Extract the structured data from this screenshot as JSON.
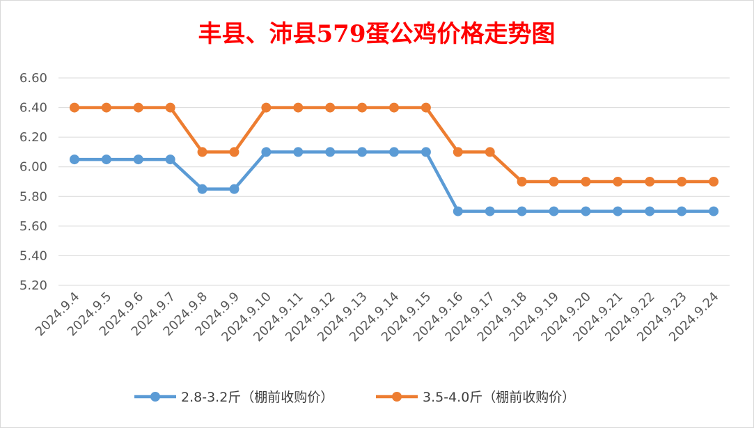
{
  "chart_data": {
    "type": "line",
    "title": "丰县、沛县579蛋公鸡价格走势图",
    "xlabel": "",
    "ylabel": "",
    "categories": [
      "2024.9.4",
      "2024.9.5",
      "2024.9.6",
      "2024.9.7",
      "2024.9.8",
      "2024.9.9",
      "2024.9.10",
      "2024.9.11",
      "2024.9.12",
      "2024.9.13",
      "2024.9.14",
      "2024.9.15",
      "2024.9.16",
      "2024.9.17",
      "2024.9.18",
      "2024.9.19",
      "2024.9.20",
      "2024.9.21",
      "2024.9.22",
      "2024.9.23",
      "2024.9.24"
    ],
    "yticks": [
      "6.60",
      "6.40",
      "6.20",
      "6.00",
      "5.80",
      "5.60",
      "5.40",
      "5.20"
    ],
    "ylim": [
      5.2,
      6.6
    ],
    "grid": true,
    "legend_position": "bottom",
    "series": [
      {
        "name": "2.8-3.2斤（棚前收购价）",
        "color": "#5b9bd5",
        "values": [
          6.05,
          6.05,
          6.05,
          6.05,
          5.85,
          5.85,
          6.1,
          6.1,
          6.1,
          6.1,
          6.1,
          6.1,
          5.7,
          5.7,
          5.7,
          5.7,
          5.7,
          5.7,
          5.7,
          5.7,
          5.7
        ]
      },
      {
        "name": "3.5-4.0斤（棚前收购价）",
        "color": "#ed7d31",
        "values": [
          6.4,
          6.4,
          6.4,
          6.4,
          6.1,
          6.1,
          6.4,
          6.4,
          6.4,
          6.4,
          6.4,
          6.4,
          6.1,
          6.1,
          5.9,
          5.9,
          5.9,
          5.9,
          5.9,
          5.9,
          5.9
        ]
      }
    ]
  }
}
